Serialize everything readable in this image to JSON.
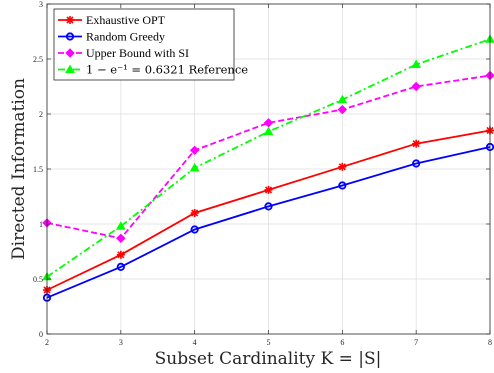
{
  "chart_data": {
    "type": "line",
    "xlabel": "Subset Cardinality K = |S|",
    "ylabel": "Directed Information",
    "x": [
      2,
      3,
      4,
      5,
      6,
      7,
      8
    ],
    "xlim": [
      2,
      8
    ],
    "ylim": [
      0,
      3
    ],
    "xticks": [
      "2",
      "3",
      "4",
      "5",
      "6",
      "7",
      "8"
    ],
    "yticks": [
      "0",
      "0.5",
      "1",
      "1.5",
      "2",
      "2.5",
      "3"
    ],
    "grid": true,
    "legend_position": "top-left",
    "series": [
      {
        "name": "Exhaustive OPT",
        "values": [
          0.4,
          0.72,
          1.1,
          1.31,
          1.52,
          1.73,
          1.85
        ],
        "color": "#ff0000",
        "marker": "asterisk",
        "style": "solid"
      },
      {
        "name": "Random Greedy",
        "values": [
          0.33,
          0.61,
          0.95,
          1.16,
          1.35,
          1.55,
          1.7
        ],
        "color": "#0000ff",
        "marker": "circle",
        "style": "solid"
      },
      {
        "name": "Upper Bound with SI",
        "values": [
          1.01,
          0.87,
          1.67,
          1.92,
          2.04,
          2.25,
          2.35
        ],
        "color": "#ff00ff",
        "marker": "diamond",
        "style": "dashed"
      },
      {
        "name": "1 − e⁻¹ = 0.6321 Reference",
        "values": [
          0.52,
          0.98,
          1.51,
          1.84,
          2.13,
          2.45,
          2.68
        ],
        "color": "#00ff00",
        "marker": "triangle",
        "style": "dashdot"
      }
    ]
  }
}
